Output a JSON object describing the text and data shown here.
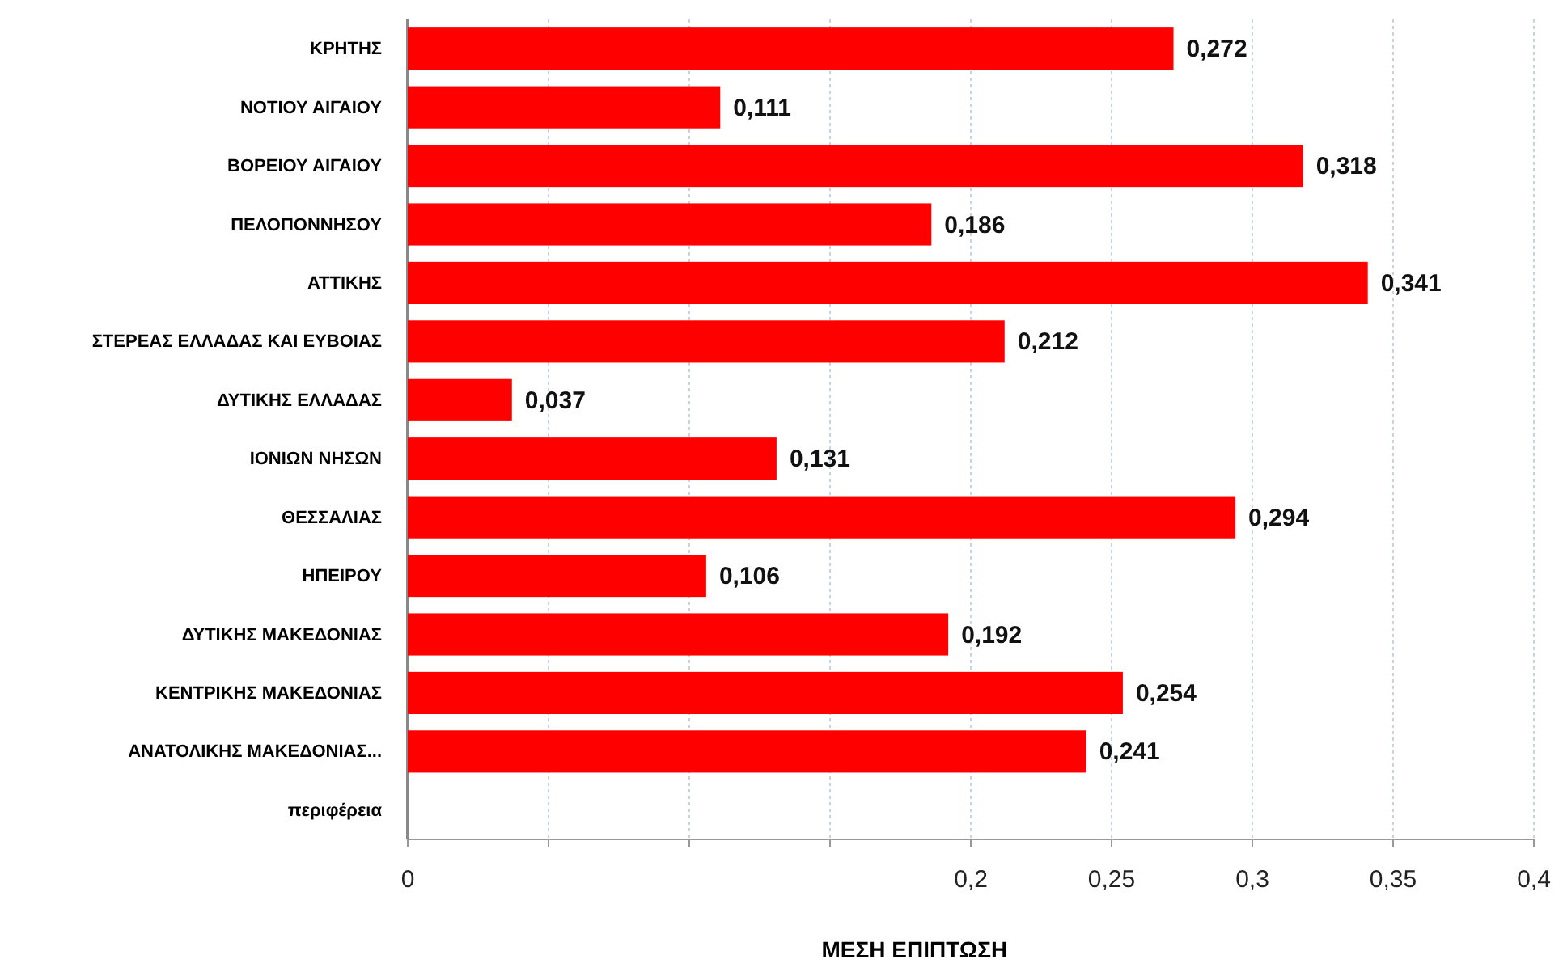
{
  "chart_data": {
    "type": "bar",
    "orientation": "horizontal",
    "xlabel": "ΜΕΣΗ ΕΠΙΠΤΩΣΗ",
    "categories": [
      "ΚΡΗΤΗΣ",
      "ΝΟΤΙΟΥ ΑΙΓΑΙΟΥ",
      "ΒΟΡΕΙΟΥ ΑΙΓΑΙΟΥ",
      "ΠΕΛΟΠΟΝΝΗΣΟΥ",
      "ΑΤΤΙΚΗΣ",
      "ΣΤΕΡΕΑΣ ΕΛΛΑΔΑΣ ΚΑΙ ΕΥΒΟΙΑΣ",
      "ΔΥΤΙΚΗΣ ΕΛΛΑΔΑΣ",
      "ΙΟΝΙΩΝ ΝΗΣΩΝ",
      "ΘΕΣΣΑΛΙΑΣ",
      "ΗΠΕΙΡΟΥ",
      "ΔΥΤΙΚΗΣ ΜΑΚΕΔΟΝΙΑΣ",
      "ΚΕΝΤΡΙΚΗΣ ΜΑΚΕΔΟΝΙΑΣ",
      "ΑΝΑΤΟΛΙΚΗΣ ΜΑΚΕΔΟΝΙΑΣ...",
      "περιφέρεια"
    ],
    "values": [
      0.272,
      0.111,
      0.318,
      0.186,
      0.341,
      0.212,
      0.037,
      0.131,
      0.294,
      0.106,
      0.192,
      0.254,
      0.241,
      null
    ],
    "value_labels": [
      "0,272",
      "0,111",
      "0,318",
      "0,186",
      "0,341",
      "0,212",
      "0,037",
      "0,131",
      "0,294",
      "0,106",
      "0,192",
      "0,254",
      "0,241",
      null
    ],
    "color": "#ff0000",
    "xlim": [
      0,
      0.4
    ],
    "xticks": [
      {
        "value": 0,
        "label": "0"
      },
      {
        "value": 0.05,
        "label": null
      },
      {
        "value": 0.1,
        "label": null
      },
      {
        "value": 0.15,
        "label": null
      },
      {
        "value": 0.2,
        "label": "0,2"
      },
      {
        "value": 0.25,
        "label": "0,25"
      },
      {
        "value": 0.3,
        "label": "0,3"
      },
      {
        "value": 0.35,
        "label": "0,35"
      },
      {
        "value": 0.4,
        "label": "0,4"
      }
    ],
    "grid": "x"
  }
}
